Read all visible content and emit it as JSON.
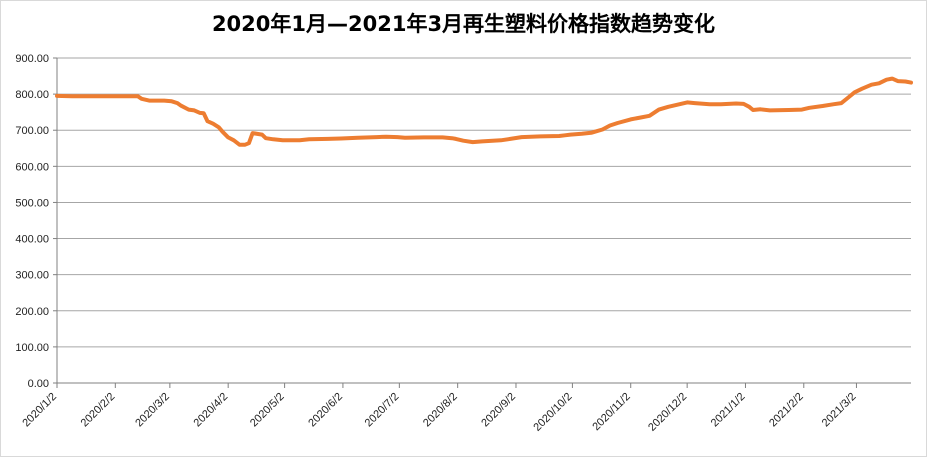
{
  "chart_data": {
    "type": "line",
    "title": "2020年1月—2021年3月再生塑料价格指数趋势变化",
    "xlabel": "",
    "ylabel": "",
    "ylim": [
      0,
      900
    ],
    "yticks": [
      0,
      100,
      200,
      300,
      400,
      500,
      600,
      700,
      800,
      900
    ],
    "ytick_labels": [
      "0.00",
      "100.00",
      "200.00",
      "300.00",
      "400.00",
      "500.00",
      "600.00",
      "700.00",
      "800.00",
      "900.00"
    ],
    "xlim": [
      "2020-01-02",
      "2021-03-31"
    ],
    "x_tick_dates": [
      "2020-01-02",
      "2020-02-02",
      "2020-03-02",
      "2020-04-02",
      "2020-05-02",
      "2020-06-02",
      "2020-07-02",
      "2020-08-02",
      "2020-09-02",
      "2020-10-02",
      "2020-11-02",
      "2020-12-02",
      "2021-01-02",
      "2021-02-02",
      "2021-03-02"
    ],
    "x_tick_labels": [
      "2020/1/2",
      "2020/2/2",
      "2020/3/2",
      "2020/4/2",
      "2020/5/2",
      "2020/6/2",
      "2020/7/2",
      "2020/8/2",
      "2020/9/2",
      "2020/10/2",
      "2020/11/2",
      "2020/12/2",
      "2021/1/2",
      "2021/2/2",
      "2021/3/2"
    ],
    "grid": "horizontal",
    "legend": "none",
    "colors": {
      "line": "#ed7d31",
      "grid": "#a6a6a6",
      "axis": "#808080"
    },
    "series": [
      {
        "x": [
          "2020-01-02",
          "2020-01-10",
          "2020-01-20",
          "2020-02-01",
          "2020-02-10",
          "2020-02-14",
          "2020-02-16",
          "2020-02-20",
          "2020-02-28",
          "2020-03-03",
          "2020-03-06",
          "2020-03-08",
          "2020-03-12",
          "2020-03-15",
          "2020-03-18",
          "2020-03-20",
          "2020-03-22",
          "2020-03-25",
          "2020-03-28",
          "2020-03-30",
          "2020-04-02",
          "2020-04-05",
          "2020-04-08",
          "2020-04-11",
          "2020-04-13",
          "2020-04-15",
          "2020-04-20",
          "2020-04-22",
          "2020-04-26",
          "2020-05-01",
          "2020-05-10",
          "2020-05-15",
          "2020-05-25",
          "2020-06-01",
          "2020-06-10",
          "2020-06-20",
          "2020-06-25",
          "2020-07-01",
          "2020-07-05",
          "2020-07-15",
          "2020-07-25",
          "2020-07-30",
          "2020-08-01",
          "2020-08-05",
          "2020-08-10",
          "2020-08-15",
          "2020-08-25",
          "2020-08-30",
          "2020-09-05",
          "2020-09-15",
          "2020-09-25",
          "2020-09-28",
          "2020-10-01",
          "2020-10-07",
          "2020-10-12",
          "2020-10-14",
          "2020-10-18",
          "2020-10-22",
          "2020-10-26",
          "2020-11-02",
          "2020-11-07",
          "2020-11-12",
          "2020-11-17",
          "2020-11-22",
          "2020-11-28",
          "2020-12-02",
          "2020-12-06",
          "2020-12-14",
          "2020-12-20",
          "2020-12-28",
          "2021-01-01",
          "2021-01-04",
          "2021-01-06",
          "2021-01-10",
          "2021-01-15",
          "2021-01-25",
          "2021-02-01",
          "2021-02-05",
          "2021-02-12",
          "2021-02-18",
          "2021-02-22",
          "2021-02-26",
          "2021-03-01",
          "2021-03-05",
          "2021-03-10",
          "2021-03-14",
          "2021-03-18",
          "2021-03-21",
          "2021-03-24",
          "2021-03-28",
          "2021-03-31"
        ],
        "y": [
          795,
          794,
          794,
          794,
          794,
          794,
          787,
          782,
          782,
          780,
          775,
          768,
          757,
          755,
          748,
          747,
          725,
          718,
          708,
          696,
          680,
          672,
          660,
          660,
          664,
          692,
          688,
          678,
          675,
          672,
          672,
          675,
          676,
          677,
          679,
          681,
          682,
          681,
          679,
          680,
          680,
          678,
          676,
          671,
          667,
          669,
          672,
          676,
          681,
          683,
          684,
          686,
          688,
          690,
          693,
          696,
          702,
          713,
          720,
          730,
          735,
          740,
          757,
          765,
          772,
          777,
          775,
          772,
          772,
          774,
          773,
          765,
          756,
          758,
          755,
          756,
          757,
          762,
          767,
          772,
          775,
          792,
          805,
          815,
          826,
          830,
          840,
          843,
          836,
          835,
          832
        ]
      }
    ]
  }
}
